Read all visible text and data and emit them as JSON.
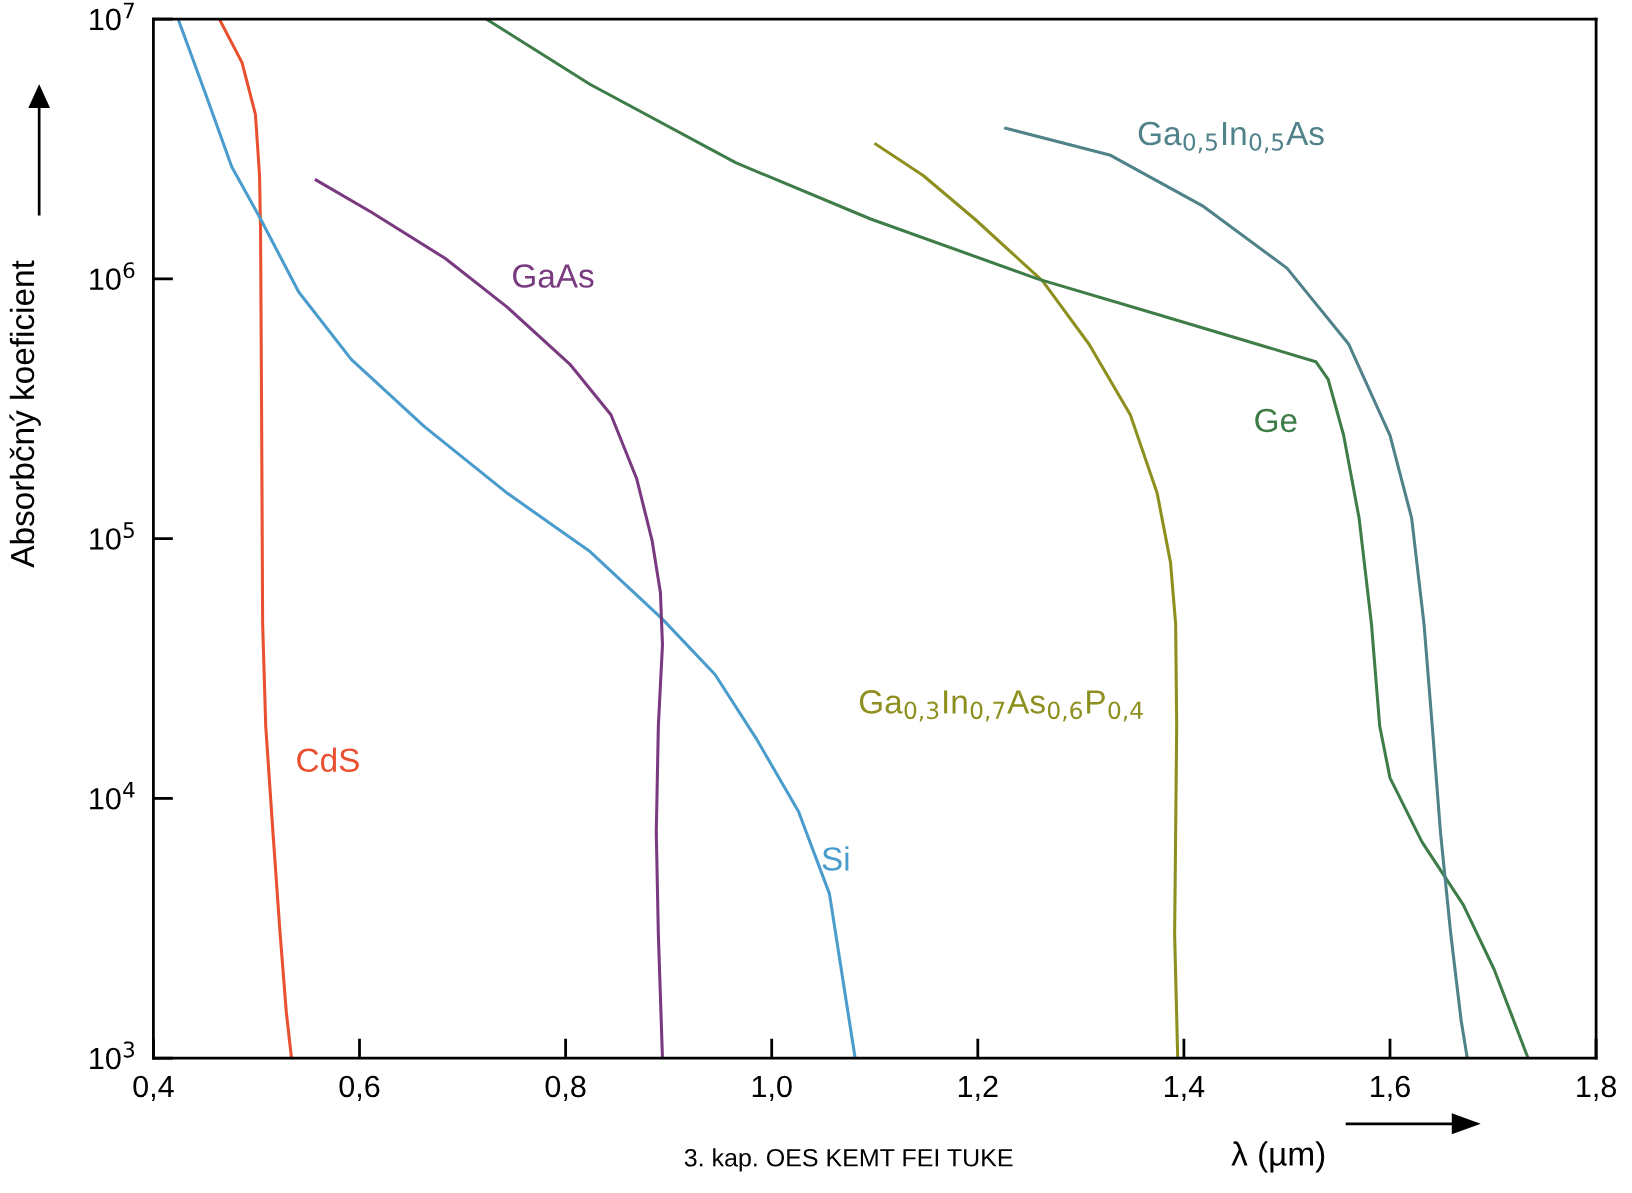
{
  "chart_data": {
    "type": "line",
    "ylabel": "Absorbčný koeficient",
    "xlabel": "λ (µm)",
    "log": "y",
    "xlim": [
      0.4,
      1.8
    ],
    "ylim": [
      1000,
      10000000
    ],
    "xticks": [
      {
        "value": 0.4,
        "label": "0,4"
      },
      {
        "value": 0.6,
        "label": "0,6"
      },
      {
        "value": 0.8,
        "label": "0,8"
      },
      {
        "value": 1.0,
        "label": "1,0"
      },
      {
        "value": 1.2,
        "label": "1,2"
      },
      {
        "value": 1.4,
        "label": "1,4"
      },
      {
        "value": 1.6,
        "label": "1,6"
      },
      {
        "value": 1.8,
        "label": "1,8"
      }
    ],
    "yticks": [
      {
        "value": 1000,
        "label": "10$^{3}$"
      },
      {
        "value": 10000,
        "label": "10$^{4}$"
      },
      {
        "value": 100000,
        "label": "10$^{5}$"
      },
      {
        "value": 1000000,
        "label": "10$^{6}$"
      },
      {
        "value": 10000000,
        "label": "10$^{7}$"
      }
    ],
    "grid": false,
    "legend": false,
    "marker": "none",
    "line_style": "solid",
    "annotations": [
      "3. kap. OES KEMT FEI TUKE"
    ],
    "series": [
      {
        "name": "CdS",
        "color": "#e8502f",
        "x": [
          0.464,
          0.486,
          0.499,
          0.503,
          0.504,
          0.505,
          0.506,
          0.509,
          0.516,
          0.523,
          0.529,
          0.534
        ],
        "values": [
          10000000.0,
          6800000.0,
          4300000.0,
          2500000.0,
          1500000.0,
          300000.0,
          47000.0,
          19000.0,
          7400.0,
          3000.0,
          1500.0,
          1000.0
        ]
      },
      {
        "name": "Si",
        "color": "#4a9ccc",
        "x": [
          0.424,
          0.451,
          0.476,
          0.504,
          0.541,
          0.592,
          0.663,
          0.743,
          0.824,
          0.894,
          0.945,
          0.985,
          1.026,
          1.056,
          1.081
        ],
        "values": [
          10000000.0,
          5100000.0,
          2700000.0,
          1700000.0,
          890000.0,
          490000.0,
          270000.0,
          150000.0,
          89000.0,
          49000.0,
          30000.0,
          17000.0,
          8900.0,
          4300.0,
          1000.0
        ]
      },
      {
        "name": "GaAs",
        "color": "#7a3a80",
        "x": [
          0.558,
          0.612,
          0.683,
          0.743,
          0.804,
          0.844,
          0.869,
          0.884,
          0.892,
          0.894,
          0.89,
          0.888,
          0.89,
          0.894
        ],
        "values": [
          2400000.0,
          1800000.0,
          1200000.0,
          780000.0,
          470000.0,
          300000.0,
          170000.0,
          98000.0,
          62000.0,
          39000.0,
          19000.0,
          7400.0,
          3000.0,
          1000.0
        ]
      },
      {
        "name": "Ga$_{0,3}$In$_{0,7}$As$_{0,6}$P$_{0,4}$",
        "color": "#8d8f1e",
        "x": [
          1.101,
          1.147,
          1.197,
          1.263,
          1.308,
          1.348,
          1.374,
          1.387,
          1.392,
          1.393,
          1.392,
          1.391,
          1.394
        ],
        "values": [
          3300000.0,
          2500000.0,
          1700000.0,
          980000.0,
          560000.0,
          300000.0,
          150000.0,
          81000.0,
          47000.0,
          19000.0,
          7400.0,
          3000.0,
          1000.0
        ]
      },
      {
        "name": "Ge",
        "color": "#3e7d48",
        "x": [
          0.723,
          0.824,
          0.965,
          1.096,
          1.258,
          1.369,
          1.528,
          1.54,
          1.555,
          1.57,
          1.582,
          1.59,
          1.6,
          1.631,
          1.671,
          1.701,
          1.734
        ],
        "values": [
          10000000.0,
          5600000.0,
          2800000.0,
          1700000.0,
          1000000.0,
          740000.0,
          480000.0,
          410000.0,
          250000.0,
          120000.0,
          47000.0,
          19000.0,
          12000.0,
          6800.0,
          3900.0,
          2200.0,
          1000.0
        ]
      },
      {
        "name": "Ga$_{0,5}$In$_{0,5}$As",
        "color": "#4f8289",
        "x": [
          1.227,
          1.328,
          1.419,
          1.5,
          1.56,
          1.6,
          1.621,
          1.633,
          1.641,
          1.649,
          1.659,
          1.669,
          1.675
        ],
        "values": [
          3800000.0,
          3000000.0,
          1900000.0,
          1100000.0,
          560000.0,
          250000.0,
          120000.0,
          47000.0,
          19000.0,
          7400.0,
          3000.0,
          1400.0,
          1000.0
        ]
      }
    ]
  }
}
